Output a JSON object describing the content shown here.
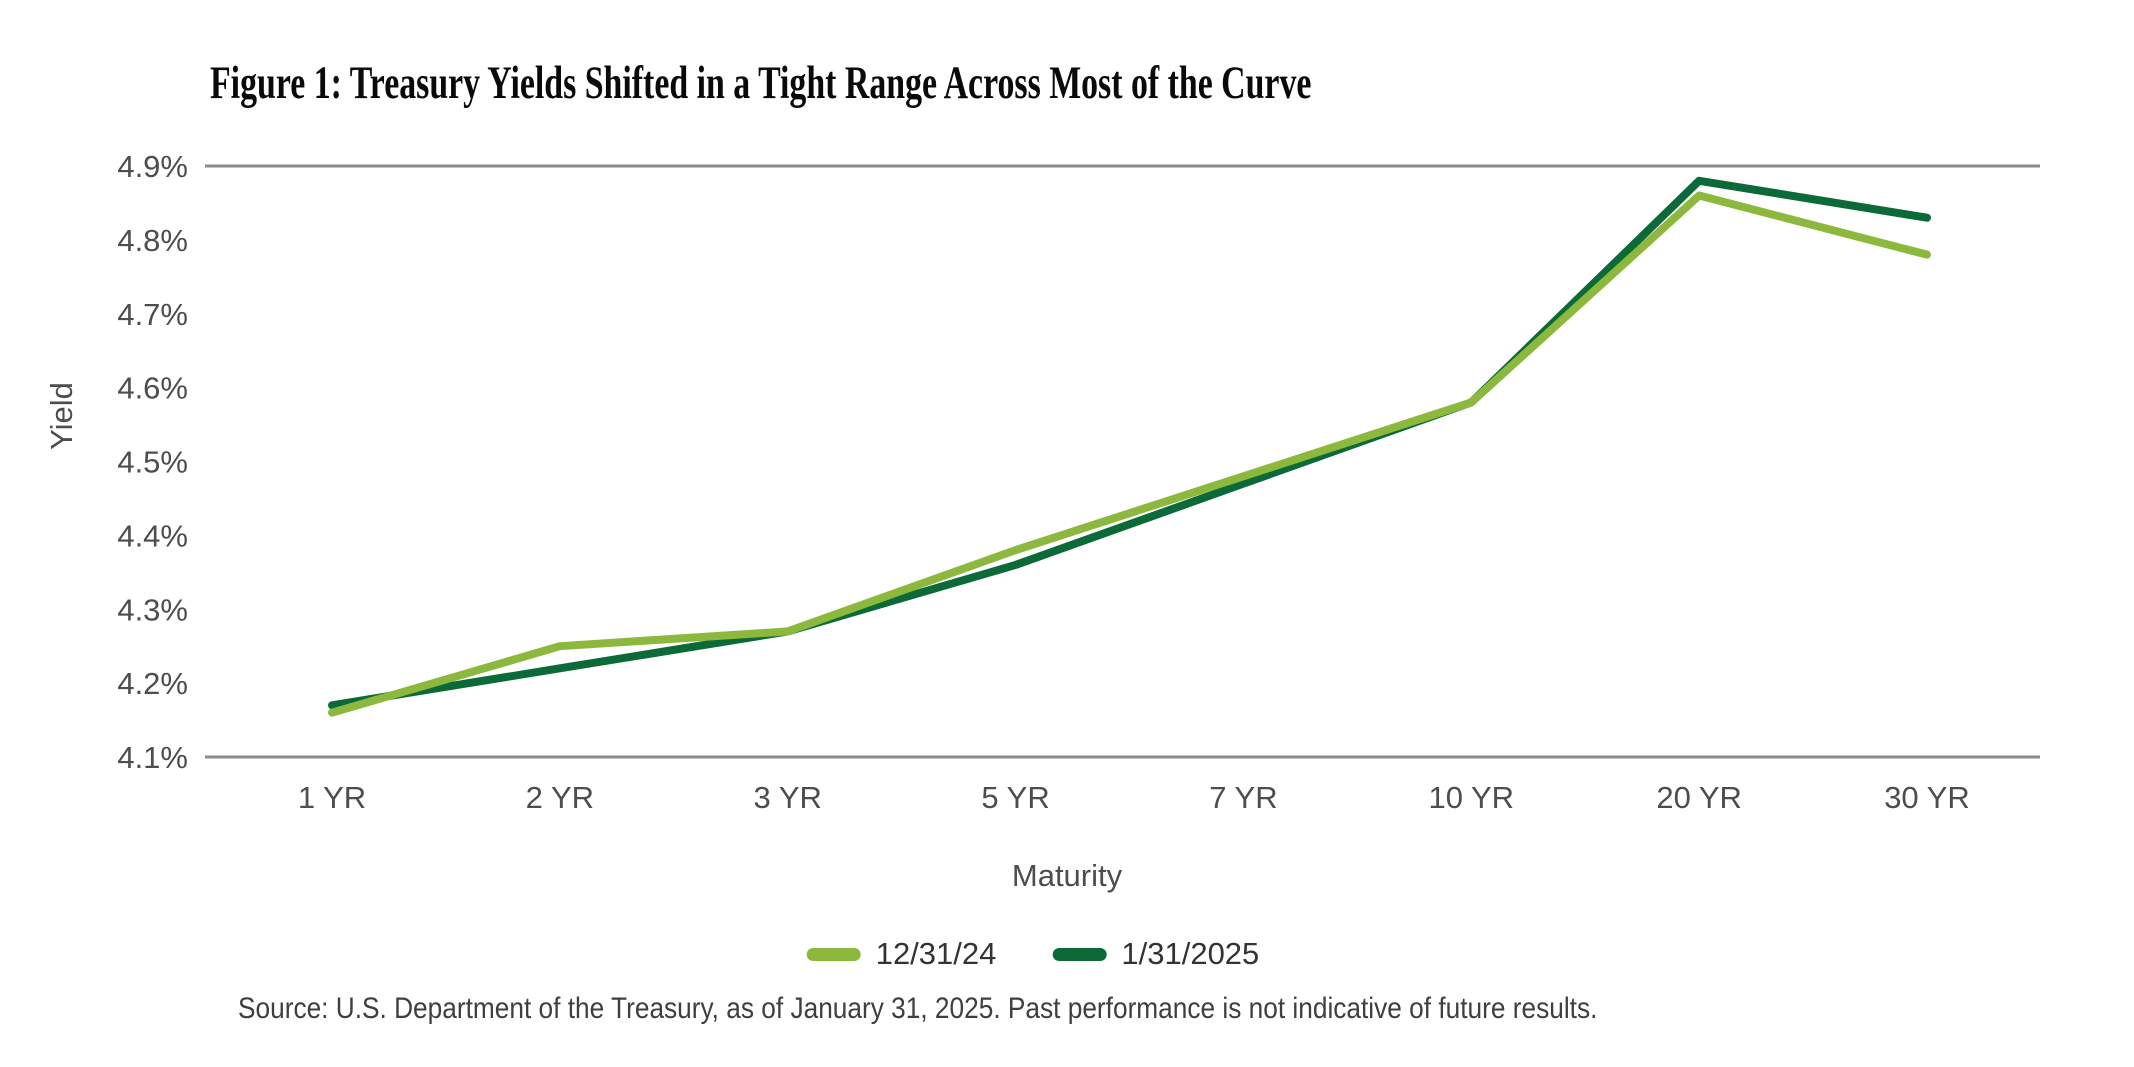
{
  "figure": {
    "title": "Figure 1: Treasury Yields Shifted in a Tight Range Across Most of the Curve",
    "source_note": "Source: U.S. Department of the Treasury, as of January 31, 2025. Past performance is not indicative of future results."
  },
  "colors": {
    "series_12_31_24": "#8CB83E",
    "series_1_31_2025": "#0C6A38",
    "grid_line": "#8A8A8A",
    "axis_text": "#4D4D4D"
  },
  "chart_data": {
    "type": "line",
    "title": "Figure 1: Treasury Yields Shifted in a Tight Range Across Most of the Curve",
    "xlabel": "Maturity",
    "ylabel": "Yield",
    "categories": [
      "1 YR",
      "2 YR",
      "3 YR",
      "5 YR",
      "7 YR",
      "10 YR",
      "20 YR",
      "30 YR"
    ],
    "series": [
      {
        "name": "12/31/24",
        "color": "#8CB83E",
        "values": [
          4.16,
          4.25,
          4.27,
          4.38,
          4.48,
          4.58,
          4.86,
          4.78
        ]
      },
      {
        "name": "1/31/2025",
        "color": "#0C6A38",
        "values": [
          4.17,
          4.22,
          4.27,
          4.36,
          4.47,
          4.58,
          4.88,
          4.83
        ]
      }
    ],
    "ylim": [
      4.1,
      4.9
    ],
    "y_ticks": [
      {
        "label": "4.9%",
        "value": 4.9,
        "line": true
      },
      {
        "label": "4.8%",
        "value": 4.8,
        "line": false
      },
      {
        "label": "4.7%",
        "value": 4.7,
        "line": false
      },
      {
        "label": "4.6%",
        "value": 4.6,
        "line": false
      },
      {
        "label": "4.5%",
        "value": 4.5,
        "line": false
      },
      {
        "label": "4.4%",
        "value": 4.4,
        "line": false
      },
      {
        "label": "4.3%",
        "value": 4.3,
        "line": false
      },
      {
        "label": "4.2%",
        "value": 4.2,
        "line": false
      },
      {
        "label": "4.1%",
        "value": 4.1,
        "line": true
      }
    ],
    "grid": "horizontal rules at top (4.9%) and bottom (4.1%) only",
    "legend_position": "bottom-center"
  }
}
